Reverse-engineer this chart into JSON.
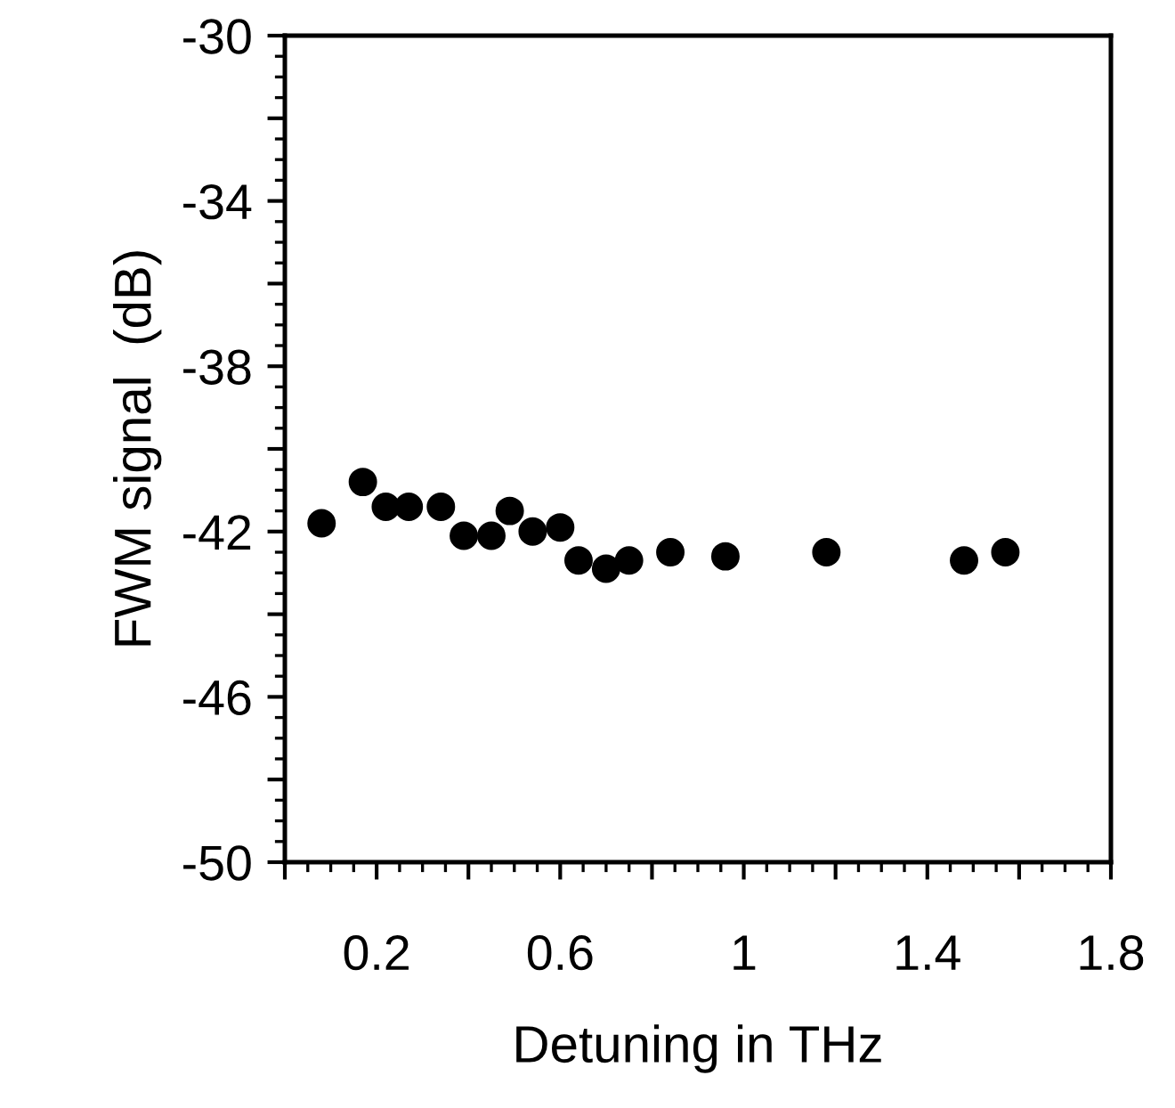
{
  "chart_data": {
    "type": "scatter",
    "xlabel": "Detuning in THz",
    "ylabel": "FWM signal  (dB)",
    "x": [
      0.08,
      0.17,
      0.22,
      0.27,
      0.34,
      0.39,
      0.45,
      0.49,
      0.54,
      0.6,
      0.64,
      0.7,
      0.75,
      0.84,
      0.96,
      1.18,
      1.48,
      1.57
    ],
    "series": [
      {
        "color": "#000000",
        "values": [
          -41.8,
          -40.8,
          -41.4,
          -41.4,
          -41.4,
          -42.1,
          -42.1,
          -41.5,
          -42.0,
          -41.9,
          -42.7,
          -42.9,
          -42.7,
          -42.5,
          -42.6,
          -42.5,
          -42.7,
          -42.5
        ]
      }
    ],
    "marker": "circle",
    "xlim": [
      0,
      1.8
    ],
    "xticks": [
      {
        "value": 0,
        "label": null
      },
      0.2,
      {
        "value": 0.4,
        "label": null
      },
      0.6,
      {
        "value": 0.8,
        "label": null
      },
      1,
      {
        "value": 1.2,
        "label": null
      },
      1.4,
      {
        "value": 1.6,
        "label": null
      },
      1.8
    ],
    "ylim": [
      -50,
      -30
    ],
    "yticks": [
      -50,
      {
        "value": -48,
        "label": null
      },
      -46,
      {
        "value": -44,
        "label": null
      },
      -42,
      {
        "value": -40,
        "label": null
      },
      -38,
      {
        "value": -36,
        "label": null
      },
      -34,
      {
        "value": -32,
        "label": null
      },
      -30
    ],
    "grid": false,
    "legend": false
  }
}
